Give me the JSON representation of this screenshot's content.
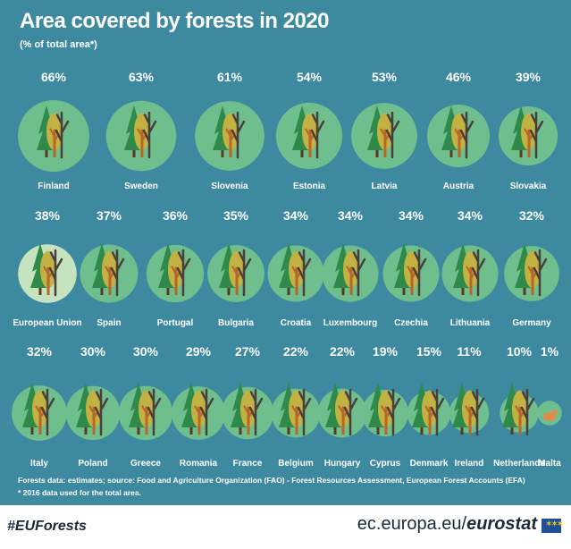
{
  "title": "Area covered by forests in 2020",
  "subtitle": "(% of total area*)",
  "footnote_source": "Forests data: estimates; source: Food and Agriculture Organization (FAO) - Forest Resources Assessment, European Forest Accounts (EFA)",
  "footnote_star": "* 2016 data used for the total area.",
  "hashtag": "#EUForests",
  "site_prefix": "ec.europa.eu/",
  "site_brand": "eurostat",
  "colors": {
    "panel": "#3d8aa0",
    "circle": "#6fbf8e",
    "eu_circle": "#c6e3c0",
    "conifer": "#2f8a4a",
    "trunk": "#b8652a",
    "leaf": "#c2b243",
    "bare": "#4a3f3a",
    "text": "#ffffff"
  },
  "chart_data": {
    "type": "pictogram",
    "title": "Area covered by forests in 2020",
    "unit": "% of total area",
    "categories": [
      "Finland",
      "Sweden",
      "Slovenia",
      "Estonia",
      "Latvia",
      "Austria",
      "Slovakia",
      "European Union",
      "Spain",
      "Portugal",
      "Bulgaria",
      "Croatia",
      "Luxembourg",
      "Czechia",
      "Lithuania",
      "Germany",
      "Italy",
      "Poland",
      "Greece",
      "Romania",
      "France",
      "Belgium",
      "Hungary",
      "Cyprus",
      "Denmark",
      "Ireland",
      "Netherlands",
      "Malta"
    ],
    "values": [
      66,
      63,
      61,
      54,
      53,
      46,
      39,
      38,
      37,
      36,
      35,
      34,
      34,
      34,
      34,
      32,
      32,
      30,
      30,
      29,
      27,
      22,
      22,
      19,
      15,
      11,
      10,
      1
    ],
    "labels": [
      "66%",
      "63%",
      "61%",
      "54%",
      "53%",
      "46%",
      "39%",
      "38%",
      "37%",
      "36%",
      "35%",
      "34%",
      "34%",
      "34%",
      "34%",
      "32%",
      "32%",
      "30%",
      "30%",
      "29%",
      "27%",
      "22%",
      "22%",
      "19%",
      "15%",
      "11%",
      "10%",
      "1%"
    ],
    "highlight": "European Union"
  }
}
